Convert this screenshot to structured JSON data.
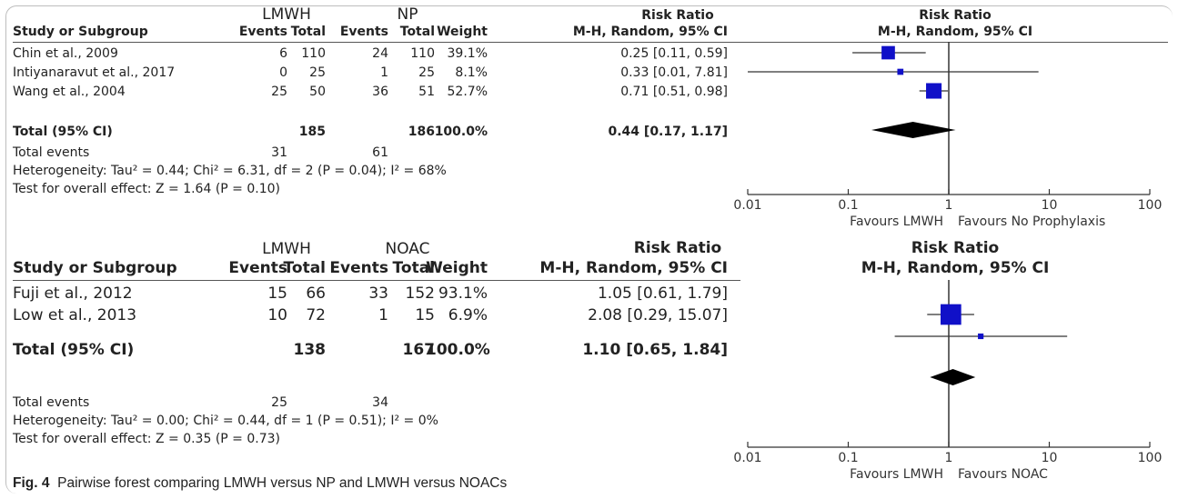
{
  "caption": {
    "label": "Fig. 4",
    "text": "Pairwise forest comparing LMWH versus NP and LMWH versus NOACs"
  },
  "chart_data": [
    {
      "type": "forest",
      "columns": {
        "study": "Study or Subgroup",
        "events": "Events",
        "total": "Total",
        "weight": "Weight",
        "rr_title": "Risk Ratio",
        "rr_method": "M-H, Random, 95% CI"
      },
      "group1": "LMWH",
      "group2": "NP",
      "studies": [
        {
          "name": "Chin et al., 2009",
          "ev1": "6",
          "tot1": "110",
          "ev2": "24",
          "tot2": "110",
          "weight": "39.1%",
          "ci_text": "0.25 [0.11, 0.59]",
          "rr": 0.25,
          "lo": 0.11,
          "hi": 0.59,
          "w": 39.1
        },
        {
          "name": "Intiyanaravut et al., 2017",
          "ev1": "0",
          "tot1": "25",
          "ev2": "1",
          "tot2": "25",
          "weight": "8.1%",
          "ci_text": "0.33 [0.01, 7.81]",
          "rr": 0.33,
          "lo": 0.01,
          "hi": 7.81,
          "w": 8.1
        },
        {
          "name": "Wang et al., 2004",
          "ev1": "25",
          "tot1": "50",
          "ev2": "36",
          "tot2": "51",
          "weight": "52.7%",
          "ci_text": "0.71 [0.51, 0.98]",
          "rr": 0.71,
          "lo": 0.51,
          "hi": 0.98,
          "w": 52.7
        }
      ],
      "total": {
        "label": "Total (95% CI)",
        "tot1": "185",
        "tot2": "186",
        "weight": "100.0%",
        "ci_text": "0.44 [0.17, 1.17]",
        "rr": 0.44,
        "lo": 0.17,
        "hi": 1.17
      },
      "total_events": {
        "label": "Total events",
        "ev1": "31",
        "ev2": "61"
      },
      "heterogeneity": "Heterogeneity: Tau² = 0.44; Chi² = 6.31, df = 2 (P = 0.04); I² = 68%",
      "overall_effect": "Test for overall effect: Z = 1.64 (P = 0.10)",
      "x_ticks": [
        {
          "value": 0.01,
          "label": "0.01"
        },
        {
          "value": 0.1,
          "label": "0.1"
        },
        {
          "value": 1,
          "label": "1"
        },
        {
          "value": 10,
          "label": "10"
        },
        {
          "value": 100,
          "label": "100"
        }
      ],
      "xlim": [
        0.01,
        100
      ],
      "x_scale": "log",
      "favours_left": "Favours LMWH",
      "favours_right": "Favours No Prophylaxis",
      "marker_color": "#1010c8"
    },
    {
      "type": "forest",
      "columns": {
        "study": "Study or Subgroup",
        "events": "Events",
        "total": "Total",
        "weight": "Weight",
        "rr_title": "Risk Ratio",
        "rr_method": "M-H, Random, 95% CI"
      },
      "group1": "LMWH",
      "group2": "NOAC",
      "studies": [
        {
          "name": "Fuji et al., 2012",
          "ev1": "15",
          "tot1": "66",
          "ev2": "33",
          "tot2": "152",
          "weight": "93.1%",
          "ci_text": "1.05 [0.61, 1.79]",
          "rr": 1.05,
          "lo": 0.61,
          "hi": 1.79,
          "w": 93.1
        },
        {
          "name": "Low et al., 2013",
          "ev1": "10",
          "tot1": "72",
          "ev2": "1",
          "tot2": "15",
          "weight": "6.9%",
          "ci_text": "2.08 [0.29, 15.07]",
          "rr": 2.08,
          "lo": 0.29,
          "hi": 15.07,
          "w": 6.9
        }
      ],
      "total": {
        "label": "Total (95% CI)",
        "tot1": "138",
        "tot2": "167",
        "weight": "100.0%",
        "ci_text": "1.10 [0.65, 1.84]",
        "rr": 1.1,
        "lo": 0.65,
        "hi": 1.84
      },
      "total_events": {
        "label": "Total events",
        "ev1": "25",
        "ev2": "34"
      },
      "heterogeneity": "Heterogeneity: Tau² = 0.00; Chi² = 0.44, df = 1 (P = 0.51); I² = 0%",
      "overall_effect": "Test for overall effect: Z = 0.35 (P = 0.73)",
      "x_ticks": [
        {
          "value": 0.01,
          "label": "0.01"
        },
        {
          "value": 0.1,
          "label": "0.1"
        },
        {
          "value": 1,
          "label": "1"
        },
        {
          "value": 10,
          "label": "10"
        },
        {
          "value": 100,
          "label": "100"
        }
      ],
      "xlim": [
        0.01,
        100
      ],
      "x_scale": "log",
      "favours_left": "Favours LMWH",
      "favours_right": "Favours NOAC",
      "marker_color": "#1010c8"
    }
  ]
}
